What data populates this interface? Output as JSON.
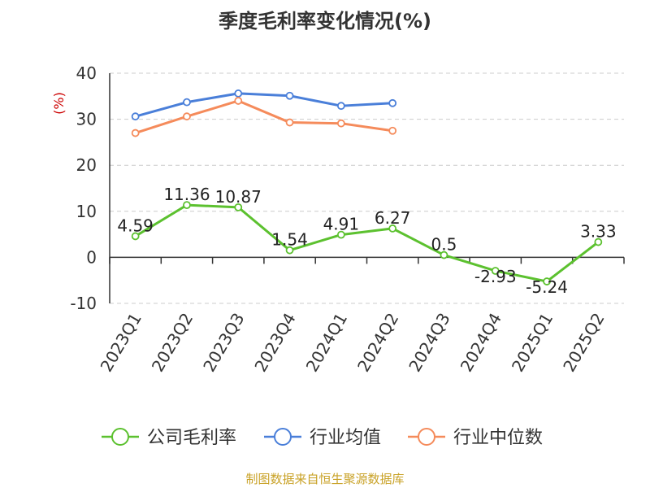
{
  "title": "季度毛利率变化情况(%)",
  "source": "制图数据来自恒生聚源数据库",
  "colors": {
    "company": "#5cc12f",
    "industry_avg": "#4a7fd9",
    "industry_median": "#f58b5b",
    "ylabel": "#cc0000",
    "grid": "#cccccc",
    "axis": "#333333",
    "source": "#c9a227"
  },
  "chart_data": {
    "type": "line",
    "title": "季度毛利率变化情况(%)",
    "xlabel": "",
    "ylabel": "(%)",
    "ylim": [
      -10,
      40
    ],
    "yticks": [
      40,
      30,
      20,
      10,
      0,
      -10
    ],
    "grid": "horizontal dashed",
    "legend_position": "bottom",
    "categories": [
      "2023Q1",
      "2023Q2",
      "2023Q3",
      "2023Q4",
      "2024Q1",
      "2024Q2",
      "2024Q3",
      "2024Q4",
      "2025Q1",
      "2025Q2"
    ],
    "series": [
      {
        "name": "公司毛利率",
        "color": "#5cc12f",
        "values": [
          4.59,
          11.36,
          10.87,
          1.54,
          4.91,
          6.27,
          0.5,
          -2.93,
          -5.24,
          3.33
        ],
        "labels": [
          "4.59",
          "11.36",
          "10.87",
          "1.54",
          "4.91",
          "6.27",
          "0.5",
          "-2.93",
          "-5.24",
          "3.33"
        ]
      },
      {
        "name": "行业均值",
        "color": "#4a7fd9",
        "values": [
          30.6,
          33.7,
          35.6,
          35.1,
          32.9,
          33.5,
          null,
          null,
          null,
          null
        ]
      },
      {
        "name": "行业中位数",
        "color": "#f58b5b",
        "values": [
          27.0,
          30.6,
          34.0,
          29.3,
          29.1,
          27.5,
          null,
          null,
          null,
          null
        ]
      }
    ]
  }
}
